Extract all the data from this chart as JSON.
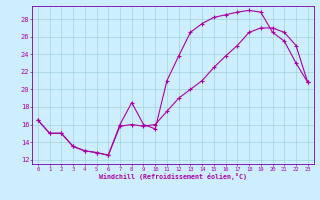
{
  "xlabel": "Windchill (Refroidissement éolien,°C)",
  "bg_color": "#cceeff",
  "line_color": "#aa00aa",
  "spine_color": "#7700aa",
  "xlim": [
    -0.5,
    23.5
  ],
  "ylim": [
    11.5,
    29.5
  ],
  "xticks": [
    0,
    1,
    2,
    3,
    4,
    5,
    6,
    7,
    8,
    9,
    10,
    11,
    12,
    13,
    14,
    15,
    16,
    17,
    18,
    19,
    20,
    21,
    22,
    23
  ],
  "yticks": [
    12,
    14,
    16,
    18,
    20,
    22,
    24,
    26,
    28
  ],
  "grid_color": "#99cccc",
  "curve1_x": [
    0,
    1,
    2,
    3,
    4,
    5,
    6,
    7,
    8,
    9,
    10,
    11,
    12,
    13,
    14,
    15,
    16,
    17,
    18,
    19,
    20,
    21,
    22,
    23
  ],
  "curve1_y": [
    16.5,
    15.0,
    15.0,
    13.5,
    13.0,
    12.8,
    12.5,
    16.0,
    18.5,
    16.0,
    15.5,
    21.0,
    23.8,
    26.5,
    27.5,
    28.2,
    28.5,
    28.8,
    29.0,
    28.8,
    26.5,
    25.5,
    23.0,
    20.8
  ],
  "curve2_x": [
    0,
    1,
    2,
    3,
    4,
    5,
    6,
    7,
    8,
    9,
    10,
    11,
    12,
    13,
    14,
    15,
    16,
    17,
    18,
    19,
    20,
    21,
    22,
    23
  ],
  "curve2_y": [
    16.5,
    15.0,
    15.0,
    13.5,
    13.0,
    12.8,
    12.5,
    15.8,
    16.0,
    15.8,
    16.0,
    17.5,
    19.0,
    20.0,
    21.0,
    22.5,
    23.8,
    25.0,
    26.5,
    27.0,
    27.0,
    26.5,
    25.0,
    20.8
  ]
}
